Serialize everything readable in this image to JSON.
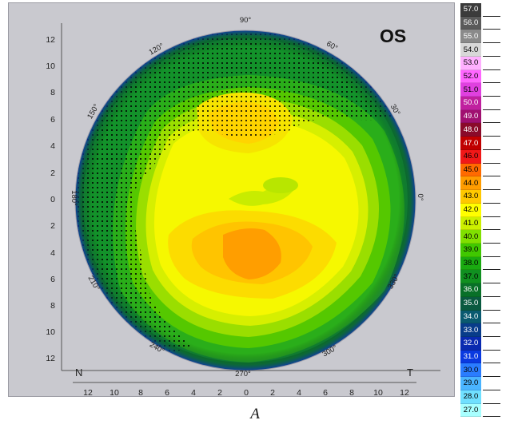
{
  "map": {
    "eye_label": "OS",
    "left_corner_label": "N",
    "right_corner_label": "T",
    "y_axis_ticks": [
      "12",
      "10",
      "8",
      "6",
      "4",
      "2",
      "0",
      "2",
      "4",
      "6",
      "8",
      "10",
      "12"
    ],
    "x_axis_ticks": [
      "12",
      "10",
      "8",
      "6",
      "4",
      "2",
      "0",
      "2",
      "4",
      "6",
      "8",
      "10",
      "12"
    ],
    "degree_labels": [
      "90°",
      "60°",
      "30°",
      "0°",
      "330°",
      "300°",
      "270°",
      "240°",
      "210°",
      "180°",
      "150°",
      "120°"
    ]
  },
  "scale": {
    "entries": [
      {
        "label": "57.0",
        "color": "#3b3b3b",
        "text": "#ffffff"
      },
      {
        "label": "56.0",
        "color": "#5a5a5a",
        "text": "#ffffff"
      },
      {
        "label": "55.0",
        "color": "#8a8a8a",
        "text": "#ffffff"
      },
      {
        "label": "54.0",
        "color": "#d8d8d8",
        "text": "#000000"
      },
      {
        "label": "53.0",
        "color": "#ffb0ff",
        "text": "#000000"
      },
      {
        "label": "52.0",
        "color": "#ff66ff",
        "text": "#000000"
      },
      {
        "label": "51.0",
        "color": "#e040e0",
        "text": "#000000"
      },
      {
        "label": "50.0",
        "color": "#c0209f",
        "text": "#ffffff"
      },
      {
        "label": "49.0",
        "color": "#a01070",
        "text": "#ffffff"
      },
      {
        "label": "48.0",
        "color": "#8a0a2a",
        "text": "#ffffff"
      },
      {
        "label": "47.0",
        "color": "#c00000",
        "text": "#ffffff"
      },
      {
        "label": "46.0",
        "color": "#f01818",
        "text": "#000000"
      },
      {
        "label": "45.0",
        "color": "#ff6a00",
        "text": "#000000"
      },
      {
        "label": "44.0",
        "color": "#ff9c00",
        "text": "#000000"
      },
      {
        "label": "43.0",
        "color": "#ffc800",
        "text": "#000000"
      },
      {
        "label": "42.0",
        "color": "#ffff00",
        "text": "#000000"
      },
      {
        "label": "41.0",
        "color": "#ccf000",
        "text": "#000000"
      },
      {
        "label": "40.0",
        "color": "#80e000",
        "text": "#000000"
      },
      {
        "label": "39.0",
        "color": "#40c800",
        "text": "#000000"
      },
      {
        "label": "38.0",
        "color": "#1aaa10",
        "text": "#000000"
      },
      {
        "label": "37.0",
        "color": "#109020",
        "text": "#000000"
      },
      {
        "label": "36.0",
        "color": "#087028",
        "text": "#ffffff"
      },
      {
        "label": "35.0",
        "color": "#0a5a40",
        "text": "#ffffff"
      },
      {
        "label": "34.0",
        "color": "#0a5a70",
        "text": "#ffffff"
      },
      {
        "label": "33.0",
        "color": "#083c8a",
        "text": "#ffffff"
      },
      {
        "label": "32.0",
        "color": "#0a2ab0",
        "text": "#ffffff"
      },
      {
        "label": "31.0",
        "color": "#0a3ae0",
        "text": "#ffffff"
      },
      {
        "label": "30.0",
        "color": "#2a7cff",
        "text": "#000000"
      },
      {
        "label": "29.0",
        "color": "#4ab4ff",
        "text": "#000000"
      },
      {
        "label": "28.0",
        "color": "#70e0ff",
        "text": "#000000"
      },
      {
        "label": "27.0",
        "color": "#a8ffff",
        "text": "#000000"
      }
    ]
  },
  "figure_label": "A"
}
